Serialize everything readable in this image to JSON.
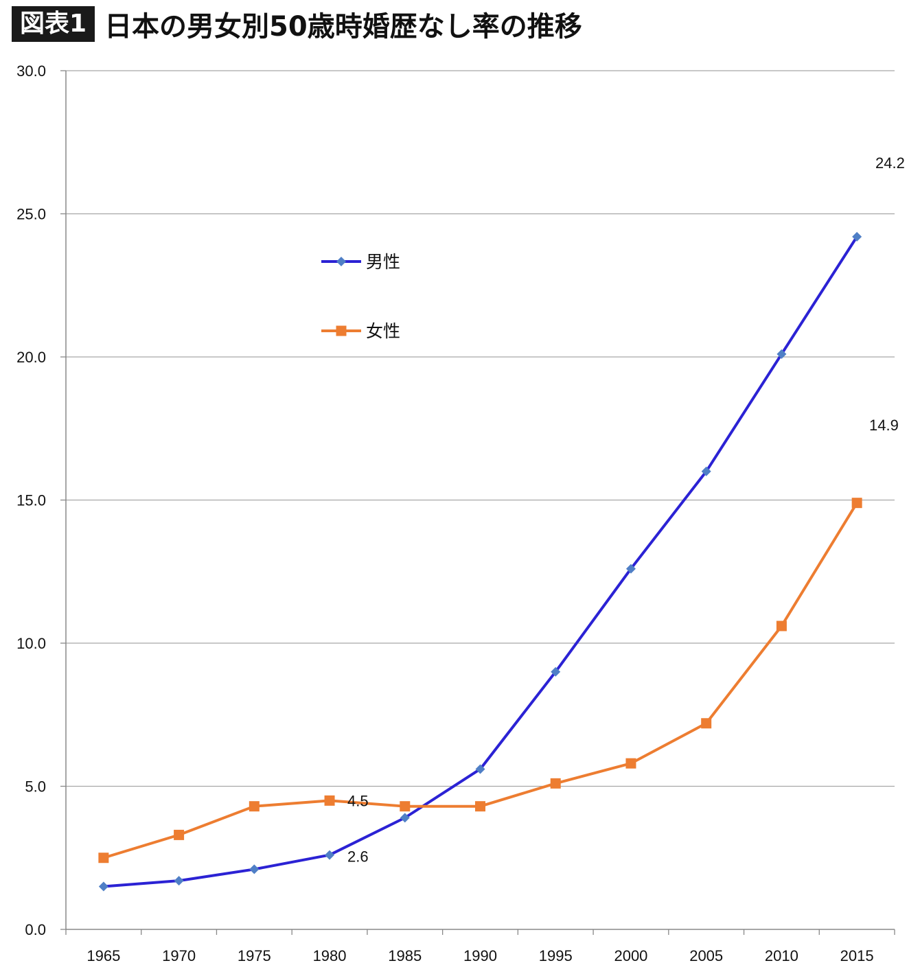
{
  "title": {
    "badge": "図表1",
    "text": "日本の男女別50歳時婚歴なし率の推移"
  },
  "chart_data": {
    "type": "line",
    "title": "日本の男女別50歳時婚歴なし率の推移",
    "xlabel": "",
    "ylabel": "",
    "categories": [
      "1965",
      "1970",
      "1975",
      "1980",
      "1985",
      "1990",
      "1995",
      "2000",
      "2005",
      "2010",
      "2015"
    ],
    "ylim": [
      0,
      30
    ],
    "yticks": [
      "0.0",
      "5.0",
      "10.0",
      "15.0",
      "20.0",
      "25.0",
      "30.0"
    ],
    "grid": true,
    "legend_placement": "upper-left-center",
    "series": [
      {
        "name": "男性",
        "color": "#2b22d4",
        "marker": "diamond",
        "marker_color": "#4f7fc6",
        "values": [
          1.5,
          1.7,
          2.1,
          2.6,
          3.9,
          5.6,
          9.0,
          12.6,
          16.0,
          20.1,
          24.2
        ]
      },
      {
        "name": "女性",
        "color": "#ed7d31",
        "marker": "square",
        "marker_color": "#ed7d31",
        "values": [
          2.5,
          3.3,
          4.3,
          4.5,
          4.3,
          4.3,
          5.1,
          5.8,
          7.2,
          10.6,
          14.9
        ]
      }
    ],
    "annotations": [
      {
        "text": "24.2",
        "series": 0,
        "index": 10,
        "anchor": "above"
      },
      {
        "text": "14.9",
        "series": 1,
        "index": 10,
        "anchor": "above"
      },
      {
        "text": "4.5",
        "series": 1,
        "index": 3,
        "anchor": "right"
      },
      {
        "text": "2.6",
        "series": 0,
        "index": 3,
        "anchor": "below-right"
      }
    ]
  }
}
